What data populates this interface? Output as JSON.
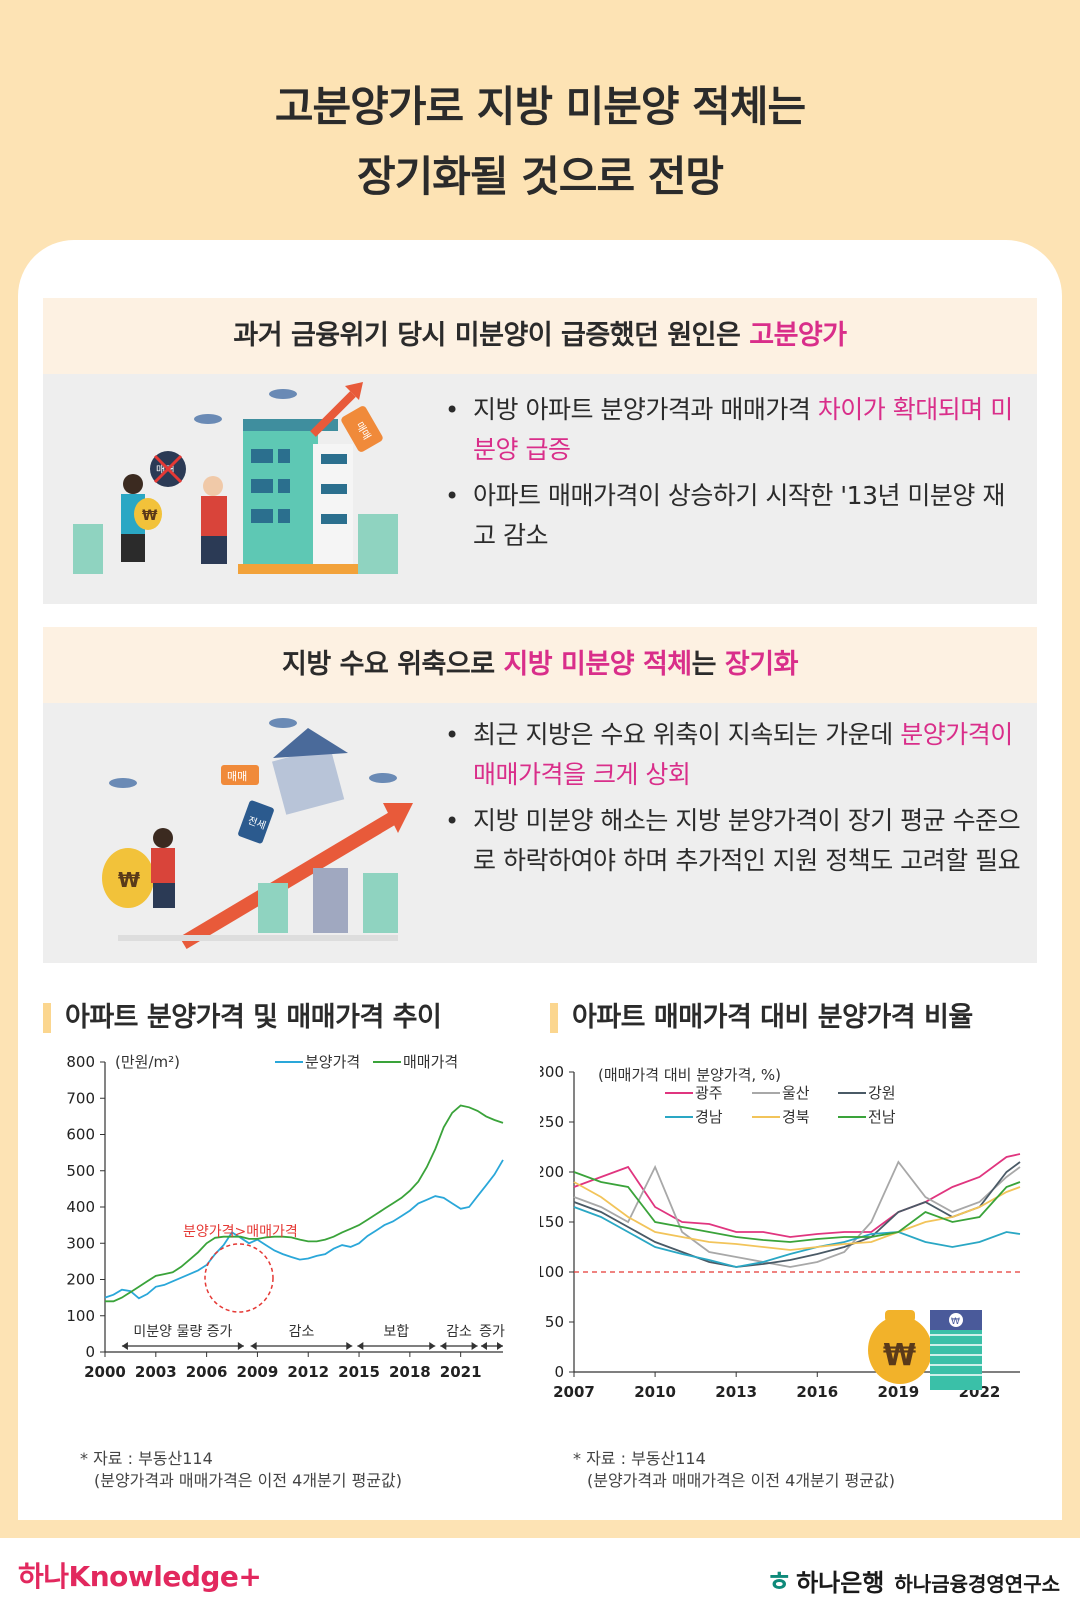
{
  "header": {
    "title_line1": "고분양가로 지방 미분양 적체는",
    "title_line2": "장기화될 것으로 전망"
  },
  "section1": {
    "title_prefix": "과거 금융위기 당시 미분양이 급증했던 원인은 ",
    "title_highlight": "고분양가",
    "bullet1_text": "지방 아파트 분양가격과 매매가격 ",
    "bullet1_hl": "차이가 확대되며 미분양 급증",
    "bullet2_text": "아파트 매매가격이 상승하기 시작한 '13년 미분양 재고 감소",
    "tag_sale": "매매",
    "tag_sale2": "매매"
  },
  "section2": {
    "title_prefix": "지방 수요 위축으로 ",
    "title_hl1": "지방 미분양 적체",
    "title_mid": "는 ",
    "title_hl2": "장기화",
    "bullet1_text": "최근 지방은 수요 위축이 지속되는 가운데 ",
    "bullet1_hl": "분양가격이 매매가격을 크게 상회",
    "bullet2_text": "지방 미분양 해소는 지방 분양가격이 장기 평균 수준으로 하락하여야 하며 추가적인 지원 정책도 고려할 필요",
    "tag_sale": "매매",
    "tag_jeonse": "전세"
  },
  "chart1": {
    "heading": "아파트 분양가격 및 매매가격 추이",
    "unit_label": "(만원/m²)",
    "annotation": "분양가격>매매가격",
    "phases": [
      "미분양 물량 증가",
      "감소",
      "보합",
      "감소",
      "증가"
    ],
    "note_line1": "* 자료 : 부동산114",
    "note_line2": "(분양가격과 매매가격은 이전 4개분기 평균값)"
  },
  "chart2": {
    "heading": "아파트 매매가격 대비 분양가격 비율",
    "unit_label": "(매매가격 대비 분양가격, %)",
    "note_line1": "* 자료 : 부동산114",
    "note_line2": "(분양가격과 매매가격은 이전 4개분기 평균값)"
  },
  "colors": {
    "highlight": "#d92e8a",
    "frame": "#fde3b4",
    "series_sale_offer": "#2aa7d9",
    "series_trade": "#3aa33a",
    "ref_line": "#e53935"
  },
  "footer": {
    "brand_left": "하나Knowledge+",
    "bank_name": "하나은행",
    "institute": "하나금융경영연구소"
  },
  "chart_data": [
    {
      "type": "line",
      "title": "아파트 분양가격 및 매매가격 추이",
      "ylabel": "(만원/m²)",
      "ylim": [
        0,
        800
      ],
      "xlim": [
        2000,
        2023.5
      ],
      "x_ticks": [
        "2000",
        "2003",
        "2006",
        "2009",
        "2012",
        "2015",
        "2018",
        "2021"
      ],
      "y_ticks": [
        "0",
        "100",
        "200",
        "300",
        "400",
        "500",
        "600",
        "700",
        "800"
      ],
      "legend_position": "top-right",
      "series": [
        {
          "name": "분양가격",
          "color": "#2aa7d9",
          "x": [
            2000,
            2000.5,
            2001,
            2001.5,
            2002,
            2002.5,
            2003,
            2003.5,
            2004,
            2004.5,
            2005,
            2005.5,
            2006,
            2006.5,
            2007,
            2007.5,
            2008,
            2008.5,
            2009,
            2009.5,
            2010,
            2010.5,
            2011,
            2011.5,
            2012,
            2012.5,
            2013,
            2013.5,
            2014,
            2014.5,
            2015,
            2015.5,
            2016,
            2016.5,
            2017,
            2017.5,
            2018,
            2018.5,
            2019,
            2019.5,
            2020,
            2020.5,
            2021,
            2021.5,
            2022,
            2022.5,
            2023,
            2023.5
          ],
          "values": [
            150,
            158,
            172,
            168,
            148,
            160,
            180,
            185,
            195,
            205,
            215,
            225,
            240,
            270,
            295,
            330,
            315,
            300,
            310,
            295,
            280,
            270,
            262,
            255,
            258,
            265,
            270,
            285,
            295,
            290,
            300,
            320,
            335,
            350,
            360,
            375,
            390,
            410,
            420,
            430,
            425,
            410,
            395,
            400,
            430,
            460,
            490,
            530
          ]
        },
        {
          "name": "매매가격",
          "color": "#3aa33a",
          "x": [
            2000,
            2000.5,
            2001,
            2001.5,
            2002,
            2002.5,
            2003,
            2003.5,
            2004,
            2004.5,
            2005,
            2005.5,
            2006,
            2006.5,
            2007,
            2007.5,
            2008,
            2008.5,
            2009,
            2009.5,
            2010,
            2010.5,
            2011,
            2011.5,
            2012,
            2012.5,
            2013,
            2013.5,
            2014,
            2014.5,
            2015,
            2015.5,
            2016,
            2016.5,
            2017,
            2017.5,
            2018,
            2018.5,
            2019,
            2019.5,
            2020,
            2020.5,
            2021,
            2021.5,
            2022,
            2022.5,
            2023,
            2023.5
          ],
          "values": [
            140,
            140,
            150,
            165,
            180,
            195,
            210,
            215,
            220,
            235,
            255,
            275,
            300,
            315,
            318,
            318,
            318,
            312,
            312,
            316,
            318,
            318,
            316,
            310,
            305,
            305,
            310,
            318,
            330,
            340,
            350,
            365,
            380,
            395,
            410,
            425,
            445,
            470,
            510,
            560,
            620,
            660,
            680,
            675,
            665,
            650,
            640,
            632
          ]
        }
      ]
    },
    {
      "type": "line",
      "title": "아파트 매매가격 대비 분양가격 비율",
      "ylabel": "(매매가격 대비 분양가격, %)",
      "ylim": [
        0,
        300
      ],
      "xlim": [
        2007,
        2023.5
      ],
      "x_ticks": [
        "2007",
        "2010",
        "2013",
        "2016",
        "2019",
        "2022"
      ],
      "y_ticks": [
        "0",
        "50",
        "100",
        "150",
        "200",
        "250",
        "300"
      ],
      "reference_line": 100,
      "legend_position": "top-center",
      "series": [
        {
          "name": "광주",
          "color": "#e0357f",
          "x": [
            2007,
            2008,
            2009,
            2010,
            2011,
            2012,
            2013,
            2014,
            2015,
            2016,
            2017,
            2018,
            2019,
            2020,
            2021,
            2022,
            2023,
            2023.5
          ],
          "values": [
            185,
            195,
            205,
            165,
            150,
            148,
            140,
            140,
            135,
            138,
            140,
            140,
            160,
            170,
            185,
            195,
            215,
            218
          ]
        },
        {
          "name": "울산",
          "color": "#a8a8a8",
          "x": [
            2007,
            2008,
            2009,
            2010,
            2011,
            2012,
            2013,
            2014,
            2015,
            2016,
            2017,
            2018,
            2019,
            2020,
            2021,
            2022,
            2023,
            2023.5
          ],
          "values": [
            175,
            165,
            150,
            205,
            140,
            120,
            115,
            110,
            105,
            110,
            120,
            150,
            210,
            175,
            160,
            170,
            195,
            205
          ]
        },
        {
          "name": "강원",
          "color": "#4a5a66",
          "x": [
            2007,
            2008,
            2009,
            2010,
            2011,
            2012,
            2013,
            2014,
            2015,
            2016,
            2017,
            2018,
            2019,
            2020,
            2021,
            2022,
            2023,
            2023.5
          ],
          "values": [
            170,
            160,
            145,
            130,
            120,
            110,
            105,
            108,
            112,
            118,
            125,
            135,
            160,
            170,
            155,
            165,
            200,
            210
          ]
        },
        {
          "name": "경남",
          "color": "#2aa7c4",
          "x": [
            2007,
            2008,
            2009,
            2010,
            2011,
            2012,
            2013,
            2014,
            2015,
            2016,
            2017,
            2018,
            2019,
            2020,
            2021,
            2022,
            2023,
            2023.5
          ],
          "values": [
            165,
            155,
            140,
            125,
            118,
            112,
            105,
            110,
            118,
            125,
            130,
            138,
            140,
            130,
            125,
            130,
            140,
            138
          ]
        },
        {
          "name": "경북",
          "color": "#f2c45a",
          "x": [
            2007,
            2008,
            2009,
            2010,
            2011,
            2012,
            2013,
            2014,
            2015,
            2016,
            2017,
            2018,
            2019,
            2020,
            2021,
            2022,
            2023,
            2023.5
          ],
          "values": [
            190,
            175,
            155,
            140,
            135,
            130,
            128,
            125,
            122,
            125,
            128,
            130,
            140,
            150,
            155,
            165,
            180,
            185
          ]
        },
        {
          "name": "전남",
          "color": "#3aa33a",
          "x": [
            2007,
            2008,
            2009,
            2010,
            2011,
            2012,
            2013,
            2014,
            2015,
            2016,
            2017,
            2018,
            2019,
            2020,
            2021,
            2022,
            2023,
            2023.5
          ],
          "values": [
            200,
            190,
            185,
            150,
            145,
            140,
            135,
            132,
            130,
            133,
            135,
            135,
            140,
            160,
            150,
            155,
            185,
            190
          ]
        }
      ]
    }
  ]
}
